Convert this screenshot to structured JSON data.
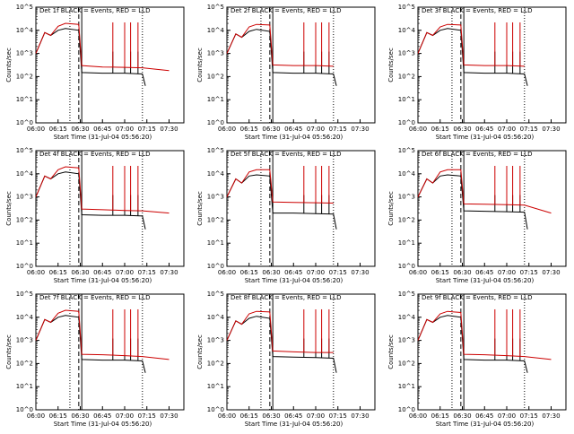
{
  "figure": {
    "ylabel": "Counts/sec",
    "xlabel": "Start Time (31-Jul-04 05:56:20)",
    "colors": {
      "events": "#000000",
      "lld": "#cc0000",
      "axis": "#000000"
    }
  },
  "chart_data": [
    {
      "type": "line",
      "title": "Det 1f BLACK = Events, RED = LLD",
      "xlabel": "Start Time (31-Jul-04 05:56:20)",
      "ylabel": "Counts/sec",
      "y_scale": "log",
      "ylim": [
        1,
        100000
      ],
      "xlim": [
        "06:00",
        "07:40"
      ],
      "x_ticks": [
        "06:00",
        "06:15",
        "06:30",
        "06:45",
        "07:00",
        "07:15",
        "07:30"
      ],
      "y_ticks": [
        "10^0",
        "10^1",
        "10^2",
        "10^3",
        "10^4",
        "10^5"
      ],
      "vlines": [
        {
          "time": "06:23",
          "style": "dotted"
        },
        {
          "time": "06:29",
          "style": "dashed"
        },
        {
          "time": "06:31",
          "style": "solid"
        },
        {
          "time": "07:12",
          "style": "dotted"
        }
      ],
      "spikes": [
        "06:52",
        "07:00",
        "07:04",
        "07:09"
      ],
      "series": [
        {
          "name": "Events",
          "color": "#000000",
          "x": [
            "06:00",
            "06:06",
            "06:10",
            "06:15",
            "06:20",
            "06:29",
            "06:31",
            "06:45",
            "07:00",
            "07:12",
            "07:14"
          ],
          "y": [
            1000,
            8000,
            6000,
            10000,
            12000,
            10000,
            150,
            140,
            140,
            130,
            40
          ]
        },
        {
          "name": "LLD",
          "color": "#cc0000",
          "x": [
            "06:00",
            "06:06",
            "06:10",
            "06:15",
            "06:20",
            "06:29",
            "06:31",
            "06:45",
            "07:00",
            "07:12",
            "07:30"
          ],
          "y": [
            1000,
            8000,
            6000,
            15000,
            20000,
            18000,
            300,
            260,
            250,
            240,
            180
          ]
        }
      ]
    },
    {
      "type": "line",
      "title": "Det 2f BLACK = Events, RED = LLD",
      "xlabel": "Start Time (31-Jul-04 05:56:20)",
      "ylabel": "Counts/sec",
      "y_scale": "log",
      "ylim": [
        1,
        100000
      ],
      "xlim": [
        "06:00",
        "07:40"
      ],
      "x_ticks": [
        "06:00",
        "06:15",
        "06:30",
        "06:45",
        "07:00",
        "07:15",
        "07:30"
      ],
      "y_ticks": [
        "10^0",
        "10^1",
        "10^2",
        "10^3",
        "10^4",
        "10^5"
      ],
      "vlines": [
        {
          "time": "06:23",
          "style": "dotted"
        },
        {
          "time": "06:29",
          "style": "dashed"
        },
        {
          "time": "06:31",
          "style": "solid"
        },
        {
          "time": "07:12",
          "style": "dotted"
        }
      ],
      "spikes": [
        "06:52",
        "07:00",
        "07:04",
        "07:09"
      ],
      "series": [
        {
          "name": "Events",
          "color": "#000000",
          "x": [
            "06:00",
            "06:06",
            "06:10",
            "06:15",
            "06:20",
            "06:29",
            "06:31",
            "06:45",
            "07:00",
            "07:12",
            "07:14"
          ],
          "y": [
            1000,
            7000,
            5000,
            9000,
            11000,
            9000,
            150,
            140,
            140,
            130,
            40
          ]
        },
        {
          "name": "LLD",
          "color": "#cc0000",
          "x": [
            "06:00",
            "06:06",
            "06:10",
            "06:15",
            "06:20",
            "06:29",
            "06:31",
            "06:45",
            "07:00",
            "07:12"
          ],
          "y": [
            1000,
            7000,
            5000,
            14000,
            18000,
            17000,
            320,
            300,
            300,
            280
          ]
        }
      ]
    },
    {
      "type": "line",
      "title": "Det 3f BLACK = Events, RED = LLD",
      "xlabel": "Start Time (31-Jul-04 05:56:20)",
      "ylabel": "Counts/sec",
      "y_scale": "log",
      "ylim": [
        1,
        100000
      ],
      "xlim": [
        "06:00",
        "07:40"
      ],
      "x_ticks": [
        "06:00",
        "06:15",
        "06:30",
        "06:45",
        "07:00",
        "07:15",
        "07:30"
      ],
      "y_ticks": [
        "10^0",
        "10^1",
        "10^2",
        "10^3",
        "10^4",
        "10^5"
      ],
      "vlines": [
        {
          "time": "06:23",
          "style": "dotted"
        },
        {
          "time": "06:29",
          "style": "dashed"
        },
        {
          "time": "06:31",
          "style": "solid"
        },
        {
          "time": "07:12",
          "style": "dotted"
        }
      ],
      "spikes": [
        "06:52",
        "07:00",
        "07:04",
        "07:09"
      ],
      "series": [
        {
          "name": "Events",
          "color": "#000000",
          "x": [
            "06:00",
            "06:06",
            "06:10",
            "06:15",
            "06:20",
            "06:29",
            "06:31",
            "06:45",
            "07:00",
            "07:12",
            "07:14"
          ],
          "y": [
            1000,
            8000,
            6000,
            10000,
            12000,
            10000,
            150,
            140,
            140,
            130,
            40
          ]
        },
        {
          "name": "LLD",
          "color": "#cc0000",
          "x": [
            "06:00",
            "06:06",
            "06:10",
            "06:15",
            "06:20",
            "06:29",
            "06:31",
            "06:45",
            "07:00",
            "07:12"
          ],
          "y": [
            1000,
            8000,
            6000,
            14000,
            18000,
            17000,
            320,
            300,
            300,
            280
          ]
        }
      ]
    },
    {
      "type": "line",
      "title": "Det 4f BLACK = Events, RED = LLD",
      "xlabel": "Start Time (31-Jul-04 05:56:20)",
      "ylabel": "Counts/sec",
      "y_scale": "log",
      "ylim": [
        1,
        100000
      ],
      "xlim": [
        "06:00",
        "07:40"
      ],
      "x_ticks": [
        "06:00",
        "06:15",
        "06:30",
        "06:45",
        "07:00",
        "07:15",
        "07:30"
      ],
      "y_ticks": [
        "10^0",
        "10^1",
        "10^2",
        "10^3",
        "10^4",
        "10^5"
      ],
      "vlines": [
        {
          "time": "06:23",
          "style": "dotted"
        },
        {
          "time": "06:29",
          "style": "dashed"
        },
        {
          "time": "06:31",
          "style": "solid"
        },
        {
          "time": "07:12",
          "style": "dotted"
        }
      ],
      "spikes": [
        "06:52",
        "07:00",
        "07:04",
        "07:09"
      ],
      "series": [
        {
          "name": "Events",
          "color": "#000000",
          "x": [
            "06:00",
            "06:06",
            "06:10",
            "06:15",
            "06:20",
            "06:29",
            "06:31",
            "06:45",
            "07:00",
            "07:12",
            "07:14"
          ],
          "y": [
            1000,
            8000,
            6000,
            10000,
            12000,
            10000,
            170,
            160,
            160,
            150,
            40
          ]
        },
        {
          "name": "LLD",
          "color": "#cc0000",
          "x": [
            "06:00",
            "06:06",
            "06:10",
            "06:15",
            "06:20",
            "06:29",
            "06:31",
            "06:45",
            "07:00",
            "07:12",
            "07:30"
          ],
          "y": [
            1000,
            8000,
            6000,
            15000,
            20000,
            18000,
            300,
            280,
            260,
            250,
            200
          ]
        }
      ]
    },
    {
      "type": "line",
      "title": "Det 5f BLACK = Events, RED = LLD",
      "xlabel": "Start Time (31-Jul-04 05:56:20)",
      "ylabel": "Counts/sec",
      "y_scale": "log",
      "ylim": [
        1,
        100000
      ],
      "xlim": [
        "06:00",
        "07:40"
      ],
      "x_ticks": [
        "06:00",
        "06:15",
        "06:30",
        "06:45",
        "07:00",
        "07:15",
        "07:30"
      ],
      "y_ticks": [
        "10^0",
        "10^1",
        "10^2",
        "10^3",
        "10^4",
        "10^5"
      ],
      "vlines": [
        {
          "time": "06:23",
          "style": "dotted"
        },
        {
          "time": "06:29",
          "style": "dashed"
        },
        {
          "time": "06:31",
          "style": "solid"
        },
        {
          "time": "07:12",
          "style": "dotted"
        }
      ],
      "spikes": [
        "06:52",
        "07:00",
        "07:04",
        "07:09"
      ],
      "series": [
        {
          "name": "Events",
          "color": "#000000",
          "x": [
            "06:00",
            "06:06",
            "06:10",
            "06:15",
            "06:20",
            "06:29",
            "06:31",
            "06:45",
            "07:00",
            "07:12",
            "07:14"
          ],
          "y": [
            1000,
            6000,
            4000,
            8000,
            9000,
            8000,
            200,
            200,
            190,
            180,
            40
          ]
        },
        {
          "name": "LLD",
          "color": "#cc0000",
          "x": [
            "06:00",
            "06:06",
            "06:10",
            "06:15",
            "06:20",
            "06:29",
            "06:31",
            "06:45",
            "07:00",
            "07:12"
          ],
          "y": [
            1000,
            6000,
            4000,
            12000,
            15000,
            15000,
            600,
            580,
            560,
            540
          ]
        }
      ]
    },
    {
      "type": "line",
      "title": "Det 6f BLACK = Events, RED = LLD",
      "xlabel": "Start Time (31-Jul-04 05:56:20)",
      "ylabel": "Counts/sec",
      "y_scale": "log",
      "ylim": [
        1,
        100000
      ],
      "xlim": [
        "06:00",
        "07:40"
      ],
      "x_ticks": [
        "06:00",
        "06:15",
        "06:30",
        "06:45",
        "07:00",
        "07:15",
        "07:30"
      ],
      "y_ticks": [
        "10^0",
        "10^1",
        "10^2",
        "10^3",
        "10^4",
        "10^5"
      ],
      "vlines": [
        {
          "time": "06:23",
          "style": "dotted"
        },
        {
          "time": "06:29",
          "style": "dashed"
        },
        {
          "time": "06:31",
          "style": "solid"
        },
        {
          "time": "07:12",
          "style": "dotted"
        }
      ],
      "spikes": [
        "06:52",
        "07:00",
        "07:04",
        "07:09"
      ],
      "series": [
        {
          "name": "Events",
          "color": "#000000",
          "x": [
            "06:00",
            "06:06",
            "06:10",
            "06:15",
            "06:20",
            "06:29",
            "06:31",
            "06:45",
            "07:00",
            "07:12",
            "07:14"
          ],
          "y": [
            1000,
            6000,
            4000,
            8000,
            9000,
            8000,
            250,
            240,
            230,
            220,
            40
          ]
        },
        {
          "name": "LLD",
          "color": "#cc0000",
          "x": [
            "06:00",
            "06:06",
            "06:10",
            "06:15",
            "06:20",
            "06:29",
            "06:31",
            "06:45",
            "07:00",
            "07:12",
            "07:30"
          ],
          "y": [
            1000,
            6000,
            4000,
            12000,
            15000,
            15000,
            500,
            480,
            460,
            440,
            200
          ]
        }
      ]
    },
    {
      "type": "line",
      "title": "Det 7f BLACK = Events, RED = LLD",
      "xlabel": "Start Time (31-Jul-04 05:56:20)",
      "ylabel": "Counts/sec",
      "y_scale": "log",
      "ylim": [
        1,
        100000
      ],
      "xlim": [
        "06:00",
        "07:40"
      ],
      "x_ticks": [
        "06:00",
        "06:15",
        "06:30",
        "06:45",
        "07:00",
        "07:15",
        "07:30"
      ],
      "y_ticks": [
        "10^0",
        "10^1",
        "10^2",
        "10^3",
        "10^4",
        "10^5"
      ],
      "vlines": [
        {
          "time": "06:23",
          "style": "dotted"
        },
        {
          "time": "06:29",
          "style": "dashed"
        },
        {
          "time": "06:31",
          "style": "solid"
        },
        {
          "time": "07:12",
          "style": "dotted"
        }
      ],
      "spikes": [
        "06:52",
        "07:00",
        "07:04",
        "07:09"
      ],
      "series": [
        {
          "name": "Events",
          "color": "#000000",
          "x": [
            "06:00",
            "06:06",
            "06:10",
            "06:15",
            "06:20",
            "06:29",
            "06:31",
            "06:45",
            "07:00",
            "07:12",
            "07:14"
          ],
          "y": [
            1000,
            8000,
            6000,
            10000,
            12000,
            10000,
            150,
            140,
            140,
            130,
            40
          ]
        },
        {
          "name": "LLD",
          "color": "#cc0000",
          "x": [
            "06:00",
            "06:06",
            "06:10",
            "06:15",
            "06:20",
            "06:29",
            "06:31",
            "06:45",
            "07:00",
            "07:12",
            "07:30"
          ],
          "y": [
            1000,
            8000,
            6000,
            15000,
            20000,
            18000,
            250,
            240,
            220,
            200,
            150
          ]
        }
      ]
    },
    {
      "type": "line",
      "title": "Det 8f BLACK = Events, RED = LLD",
      "xlabel": "Start Time (31-Jul-04 05:56:20)",
      "ylabel": "Counts/sec",
      "y_scale": "log",
      "ylim": [
        1,
        100000
      ],
      "xlim": [
        "06:00",
        "07:40"
      ],
      "x_ticks": [
        "06:00",
        "06:15",
        "06:30",
        "06:45",
        "07:00",
        "07:15",
        "07:30"
      ],
      "y_ticks": [
        "10^0",
        "10^1",
        "10^2",
        "10^3",
        "10^4",
        "10^5"
      ],
      "vlines": [
        {
          "time": "06:23",
          "style": "dotted"
        },
        {
          "time": "06:29",
          "style": "dashed"
        },
        {
          "time": "06:31",
          "style": "solid"
        },
        {
          "time": "07:12",
          "style": "dotted"
        }
      ],
      "spikes": [
        "06:52",
        "07:00",
        "07:04",
        "07:09"
      ],
      "series": [
        {
          "name": "Events",
          "color": "#000000",
          "x": [
            "06:00",
            "06:06",
            "06:10",
            "06:15",
            "06:20",
            "06:29",
            "06:31",
            "06:45",
            "07:00",
            "07:12",
            "07:14"
          ],
          "y": [
            1000,
            7000,
            5000,
            9000,
            11000,
            9000,
            200,
            190,
            180,
            170,
            40
          ]
        },
        {
          "name": "LLD",
          "color": "#cc0000",
          "x": [
            "06:00",
            "06:06",
            "06:10",
            "06:15",
            "06:20",
            "06:29",
            "06:31",
            "06:45",
            "07:00",
            "07:12"
          ],
          "y": [
            1000,
            7000,
            5000,
            14000,
            18000,
            17000,
            350,
            320,
            300,
            300
          ]
        }
      ]
    },
    {
      "type": "line",
      "title": "Det 9f BLACK = Events, RED = LLD",
      "xlabel": "Start Time (31-Jul-04 05:56:20)",
      "ylabel": "Counts/sec",
      "y_scale": "log",
      "ylim": [
        1,
        100000
      ],
      "xlim": [
        "06:00",
        "07:40"
      ],
      "x_ticks": [
        "06:00",
        "06:15",
        "06:30",
        "06:45",
        "07:00",
        "07:15",
        "07:30"
      ],
      "y_ticks": [
        "10^0",
        "10^1",
        "10^2",
        "10^3",
        "10^4",
        "10^5"
      ],
      "vlines": [
        {
          "time": "06:23",
          "style": "dotted"
        },
        {
          "time": "06:29",
          "style": "dashed"
        },
        {
          "time": "06:31",
          "style": "solid"
        },
        {
          "time": "07:12",
          "style": "dotted"
        }
      ],
      "spikes": [
        "06:52",
        "07:00",
        "07:04",
        "07:09"
      ],
      "series": [
        {
          "name": "Events",
          "color": "#000000",
          "x": [
            "06:00",
            "06:06",
            "06:10",
            "06:15",
            "06:20",
            "06:29",
            "06:31",
            "06:45",
            "07:00",
            "07:12",
            "07:14"
          ],
          "y": [
            1000,
            8000,
            6000,
            10000,
            12000,
            10000,
            150,
            140,
            140,
            130,
            40
          ]
        },
        {
          "name": "LLD",
          "color": "#cc0000",
          "x": [
            "06:00",
            "06:06",
            "06:10",
            "06:15",
            "06:20",
            "06:29",
            "06:31",
            "06:45",
            "07:00",
            "07:12",
            "07:30"
          ],
          "y": [
            1000,
            8000,
            6000,
            14000,
            18000,
            16000,
            250,
            240,
            220,
            200,
            150
          ]
        }
      ]
    }
  ]
}
